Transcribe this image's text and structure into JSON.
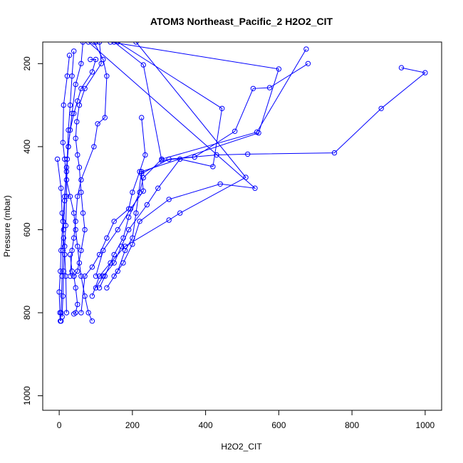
{
  "chart_data": {
    "type": "line",
    "title": "ATOM3 Northeast_Pacific_2 H2O2_CIT",
    "xlabel": "H2O2_CIT",
    "ylabel": "Pressure (mbar)",
    "xlim": [
      -45,
      1045
    ],
    "ylim": [
      1035,
      148
    ],
    "y_reversed": true,
    "xticks": [
      0,
      200,
      400,
      600,
      800,
      1000
    ],
    "yticks": [
      200,
      400,
      600,
      800,
      1000
    ],
    "color": "#0000ff",
    "marker": "open-circle",
    "grid": false,
    "series": [
      {
        "points": [
          [
            28,
            180
          ],
          [
            22,
            230
          ],
          [
            12,
            300
          ],
          [
            10,
            390
          ],
          [
            15,
            430
          ],
          [
            20,
            480
          ],
          [
            30,
            520
          ],
          [
            40,
            560
          ],
          [
            45,
            600
          ],
          [
            50,
            640
          ],
          [
            55,
            680
          ],
          [
            60,
            712
          ],
          [
            70,
            760
          ],
          [
            80,
            800
          ],
          [
            90,
            820
          ]
        ]
      },
      {
        "points": [
          [
            95,
            148
          ],
          [
            120,
            190
          ],
          [
            130,
            230
          ],
          [
            125,
            330
          ],
          [
            105,
            345
          ],
          [
            95,
            400
          ],
          [
            60,
            480
          ],
          [
            50,
            520
          ],
          [
            45,
            580
          ],
          [
            40,
            620
          ],
          [
            35,
            650
          ],
          [
            30,
            712
          ]
        ]
      },
      {
        "points": [
          [
            85,
            190
          ],
          [
            100,
            190
          ],
          [
            90,
            220
          ],
          [
            60,
            260
          ],
          [
            50,
            290
          ],
          [
            40,
            320
          ],
          [
            30,
            360
          ],
          [
            25,
            400
          ],
          [
            20,
            450
          ],
          [
            15,
            520
          ],
          [
            10,
            580
          ],
          [
            5,
            650
          ],
          [
            3,
            700
          ],
          [
            0,
            750
          ],
          [
            2,
            800
          ],
          [
            5,
            820
          ]
        ]
      },
      {
        "points": [
          [
            110,
            148
          ],
          [
            115,
            200
          ],
          [
            70,
            260
          ],
          [
            55,
            300
          ],
          [
            48,
            340
          ],
          [
            45,
            380
          ],
          [
            50,
            420
          ],
          [
            55,
            450
          ],
          [
            60,
            510
          ],
          [
            65,
            560
          ],
          [
            70,
            600
          ],
          [
            60,
            650
          ],
          [
            50,
            700
          ],
          [
            40,
            712
          ]
        ]
      },
      {
        "points": [
          [
            225,
            330
          ],
          [
            235,
            420
          ],
          [
            220,
            460
          ],
          [
            200,
            510
          ],
          [
            190,
            550
          ],
          [
            150,
            580
          ],
          [
            130,
            620
          ],
          [
            110,
            660
          ],
          [
            90,
            690
          ],
          [
            70,
            712
          ],
          [
            60,
            800
          ]
        ]
      },
      {
        "points": [
          [
            150,
            148
          ],
          [
            230,
            203
          ],
          [
            280,
            433
          ],
          [
            370,
            425
          ],
          [
            480,
            363
          ],
          [
            530,
            260
          ],
          [
            575,
            258
          ],
          [
            680,
            200
          ]
        ]
      },
      {
        "points": [
          [
            160,
            148
          ],
          [
            445,
            308
          ],
          [
            420,
            448
          ],
          [
            330,
            430
          ],
          [
            270,
            500
          ],
          [
            240,
            540
          ],
          [
            190,
            600
          ],
          [
            170,
            640
          ],
          [
            150,
            680
          ],
          [
            120,
            712
          ],
          [
            100,
            740
          ]
        ]
      },
      {
        "points": [
          [
            140,
            148
          ],
          [
            600,
            213
          ],
          [
            545,
            367
          ],
          [
            225,
            460
          ],
          [
            210,
            560
          ],
          [
            200,
            620
          ],
          [
            180,
            650
          ],
          [
            160,
            700
          ],
          [
            130,
            740
          ]
        ]
      },
      {
        "points": [
          [
            100,
            148
          ],
          [
            210,
            148
          ],
          [
            510,
            474
          ],
          [
            330,
            560
          ],
          [
            300,
            577
          ],
          [
            180,
            640
          ],
          [
            140,
            680
          ],
          [
            110,
            712
          ],
          [
            90,
            760
          ]
        ]
      },
      {
        "points": [
          [
            935,
            210
          ],
          [
            1000,
            222
          ],
          [
            880,
            308
          ],
          [
            752,
            415
          ],
          [
            515,
            418
          ],
          [
            430,
            420
          ],
          [
            300,
            430
          ],
          [
            225,
            465
          ],
          [
            230,
            507
          ],
          [
            195,
            550
          ],
          [
            160,
            600
          ],
          [
            120,
            650
          ],
          [
            100,
            712
          ]
        ]
      },
      {
        "points": [
          [
            675,
            165
          ],
          [
            540,
            365
          ],
          [
            280,
            430
          ],
          [
            230,
            475
          ],
          [
            220,
            510
          ],
          [
            190,
            570
          ],
          [
            175,
            620
          ],
          [
            150,
            660
          ],
          [
            125,
            712
          ],
          [
            110,
            740
          ]
        ]
      },
      {
        "points": [
          [
            80,
            148
          ],
          [
            535,
            500
          ],
          [
            440,
            490
          ],
          [
            300,
            527
          ],
          [
            220,
            580
          ],
          [
            200,
            635
          ],
          [
            175,
            680
          ],
          [
            150,
            712
          ]
        ]
      },
      {
        "points": [
          [
            65,
            148
          ],
          [
            60,
            200
          ],
          [
            45,
            250
          ],
          [
            35,
            320
          ],
          [
            25,
            400
          ],
          [
            20,
            460
          ],
          [
            15,
            530
          ],
          [
            12,
            600
          ],
          [
            10,
            650
          ],
          [
            8,
            712
          ],
          [
            5,
            800
          ],
          [
            3,
            820
          ]
        ]
      },
      {
        "points": [
          [
            40,
            170
          ],
          [
            35,
            230
          ],
          [
            30,
            300
          ],
          [
            25,
            360
          ],
          [
            22,
            430
          ],
          [
            20,
            520
          ],
          [
            18,
            590
          ],
          [
            15,
            640
          ],
          [
            12,
            700
          ],
          [
            10,
            760
          ],
          [
            8,
            810
          ]
        ]
      },
      {
        "points": [
          [
            -5,
            430
          ],
          [
            5,
            500
          ],
          [
            8,
            560
          ],
          [
            12,
            620
          ],
          [
            15,
            660
          ],
          [
            18,
            712
          ],
          [
            20,
            800
          ]
        ]
      },
      {
        "points": [
          [
            30,
            660
          ],
          [
            35,
            700
          ],
          [
            40,
            712
          ],
          [
            45,
            740
          ],
          [
            50,
            780
          ],
          [
            45,
            800
          ],
          [
            40,
            803
          ]
        ]
      }
    ]
  }
}
